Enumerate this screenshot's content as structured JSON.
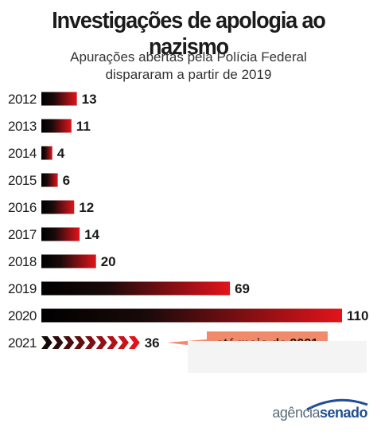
{
  "title": "Investigações de apologia ao nazismo",
  "subtitle_line1": "Apurações abertas pela Polícia Federal",
  "subtitle_line2": "dispararam a partir de 2019",
  "chart_data": {
    "type": "bar",
    "orientation": "horizontal",
    "categories": [
      "2012",
      "2013",
      "2014",
      "2015",
      "2016",
      "2017",
      "2018",
      "2019",
      "2020",
      "2021"
    ],
    "values": [
      13,
      11,
      4,
      6,
      12,
      14,
      20,
      69,
      110,
      36
    ],
    "value_labels": [
      "13",
      "11",
      "4",
      "6",
      "12",
      "14",
      "20",
      "69",
      "110",
      "36"
    ],
    "annotation": "até maio de 2021",
    "annotated_category": "2021",
    "colors": {
      "bar_start": "#000000",
      "bar_end": "#e2141b",
      "callout_bg": "#f08a6a",
      "text": "#1b1b1b"
    }
  },
  "logo": {
    "part1": "agência",
    "part2": "senado"
  }
}
